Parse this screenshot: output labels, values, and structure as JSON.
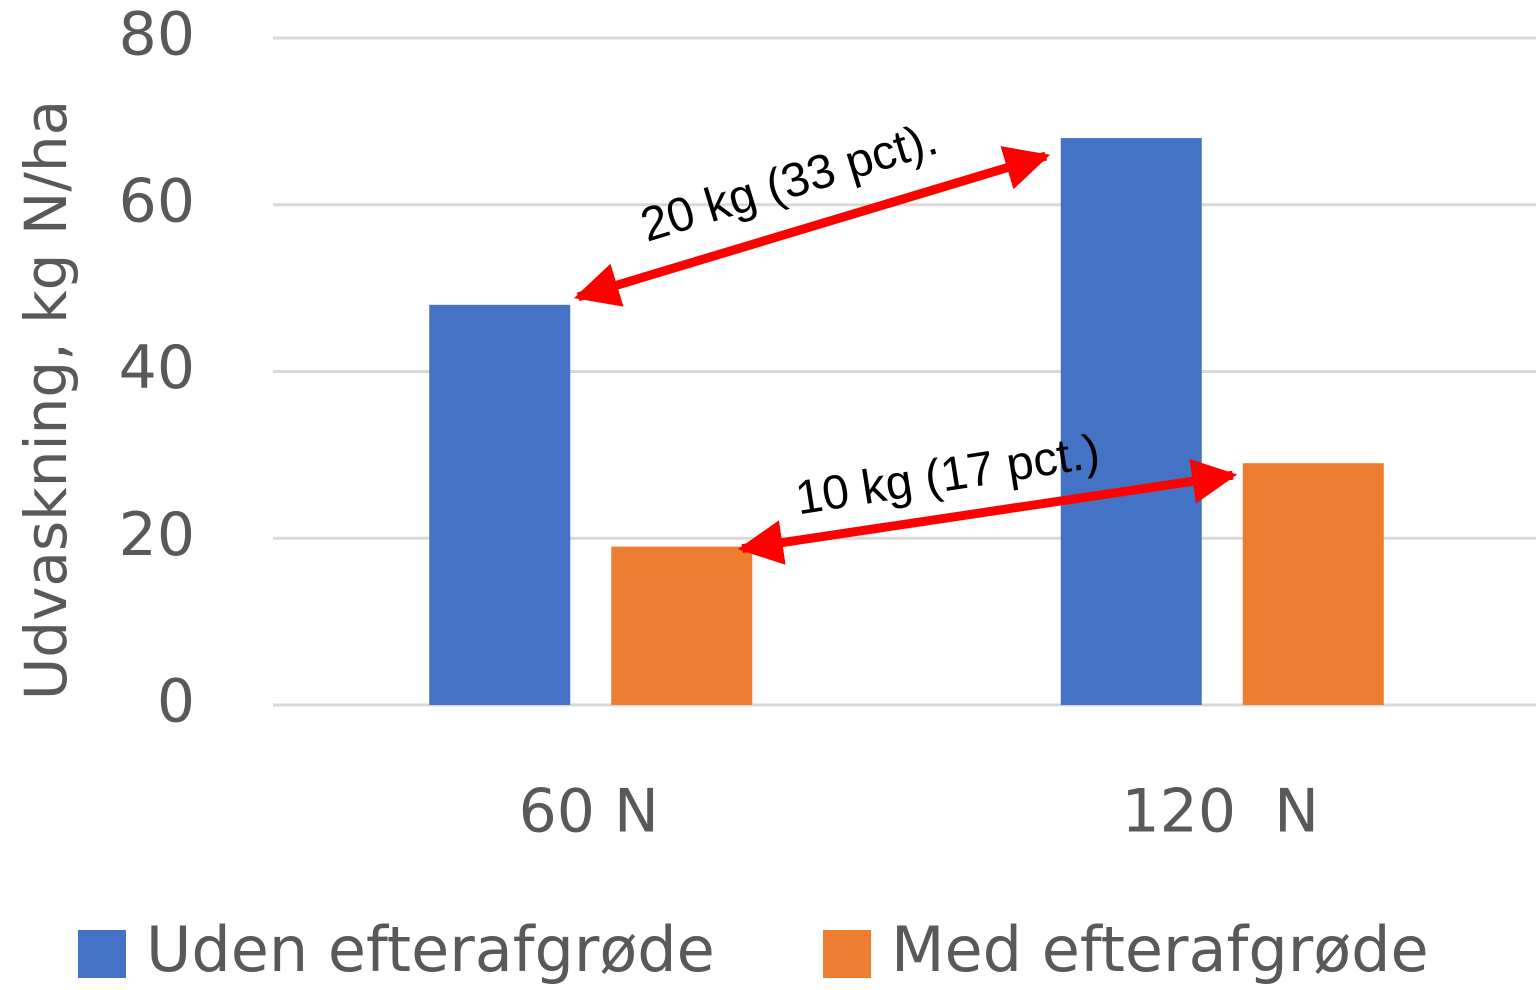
{
  "chart_data": {
    "type": "bar",
    "y_label": "Udvaskning, kg N/ha",
    "categories": [
      "60 N",
      "120  N"
    ],
    "series": [
      {
        "name": "Uden efterafgrøde",
        "color": "#4472c4",
        "values": [
          48,
          68
        ]
      },
      {
        "name": "Med efterafgrøde",
        "color": "#ed7d31",
        "values": [
          19,
          29
        ]
      }
    ],
    "ylim": [
      0,
      80
    ],
    "yticks": [
      0,
      20,
      40,
      60,
      80
    ],
    "grid": true,
    "annotations": [
      "20 kg (33 pct).",
      "10 kg (17 pct.)"
    ]
  }
}
